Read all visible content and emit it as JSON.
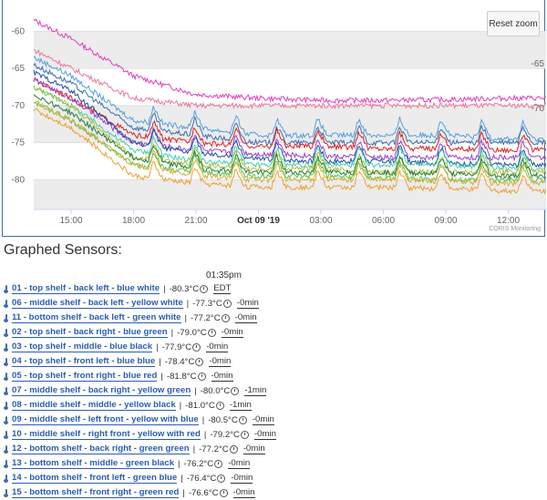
{
  "chart": {
    "reset_label": "Reset zoom",
    "credits": "CORIS Monitoring",
    "y_ticks": [
      "-60",
      "-65",
      "-70",
      "-75",
      "-80"
    ],
    "y_right_labels": [
      "-65",
      "-70"
    ],
    "x_ticks": [
      "15:00",
      "18:00",
      "21:00",
      "Oct 09 '19",
      "03:00",
      "06:00",
      "09:00",
      "12:00"
    ]
  },
  "chart_data": {
    "type": "line",
    "x": [
      "15:00",
      "18:00",
      "21:00",
      "Oct 09 '19",
      "03:00",
      "06:00",
      "09:00",
      "12:00"
    ],
    "ylim": [
      -84,
      -57
    ],
    "grid": true,
    "plot_bands": [
      [
        -60,
        -65
      ],
      [
        -70,
        -75
      ],
      [
        -80,
        -84
      ]
    ],
    "series": [
      {
        "color": "#e040c0",
        "values": [
          -61,
          -66,
          -68.5,
          -69,
          -69.3,
          -69.3,
          -69.2,
          -69.0
        ]
      },
      {
        "color": "#e87a9a",
        "values": [
          -65,
          -69,
          -70,
          -70,
          -70,
          -70,
          -70,
          -70
        ]
      },
      {
        "color": "#56a0e0",
        "values": [
          -66,
          -72,
          -73,
          -74,
          -74,
          -74,
          -74,
          -74.5
        ]
      },
      {
        "color": "#3f6db0",
        "values": [
          -67,
          -73,
          -74,
          -75,
          -75,
          -75,
          -75,
          -75
        ]
      },
      {
        "color": "#e02020",
        "values": [
          -69,
          -74,
          -75,
          -75.5,
          -75.5,
          -75.8,
          -75.8,
          -76
        ]
      },
      {
        "color": "#9a40d0",
        "values": [
          -69,
          -75,
          -76,
          -76.5,
          -76.8,
          -77,
          -77,
          -77
        ]
      },
      {
        "color": "#2050a0",
        "values": [
          -68,
          -75,
          -76.5,
          -77.2,
          -77.5,
          -77.5,
          -77.8,
          -78
        ]
      },
      {
        "color": "#40d0b0",
        "values": [
          -70,
          -76,
          -77.5,
          -78,
          -78,
          -78,
          -78,
          -78.5
        ]
      },
      {
        "color": "#b0c030",
        "values": [
          -70,
          -77,
          -78,
          -78.5,
          -78.5,
          -79,
          -79,
          -79
        ]
      },
      {
        "color": "#208040",
        "values": [
          -71,
          -77,
          -78.5,
          -79,
          -79,
          -79,
          -79.2,
          -79.5
        ]
      },
      {
        "color": "#60c040",
        "values": [
          -72,
          -78,
          -79,
          -79.5,
          -79.5,
          -79.8,
          -80,
          -80
        ]
      },
      {
        "color": "#d0b040",
        "values": [
          -72,
          -78,
          -79.5,
          -80,
          -80,
          -80,
          -80.2,
          -80.5
        ]
      },
      {
        "color": "#f0a030",
        "values": [
          -73,
          -79.5,
          -80.5,
          -81,
          -81,
          -81,
          -81.2,
          -81.5
        ]
      }
    ]
  },
  "section_title": "Graphed Sensors:",
  "time_header": "01:35pm",
  "sensors": [
    {
      "name": "01 - top shelf - back left - blue white",
      "value": "-80.3°C",
      "age": "EDT"
    },
    {
      "name": "06 - middle shelf - back left - yellow white",
      "value": "-77.3°C",
      "age": "-0min"
    },
    {
      "name": "11 - bottom shelf - back left - green white",
      "value": "-77.2°C",
      "age": "-0min"
    },
    {
      "name": "02 - top shelf - back right - blue green",
      "value": "-79.0°C",
      "age": "-0min"
    },
    {
      "name": "03 - top shelf - middle - blue black",
      "value": "-77.9°C",
      "age": "-0min"
    },
    {
      "name": "04 - top shelf - front left - blue blue",
      "value": "-78.4°C",
      "age": "-0min"
    },
    {
      "name": "05 - top shelf - front right - blue red",
      "value": "-81.8°C",
      "age": "-0min"
    },
    {
      "name": "07 - middle shelf - back right - yellow green",
      "value": "-80.0°C",
      "age": "-1min"
    },
    {
      "name": "08 - middle shelf - middle - yellow black",
      "value": "-81.0°C",
      "age": "-1min"
    },
    {
      "name": "09 - middle shelf - left front - yellow with blue",
      "value": "-80.5°C",
      "age": "-0min"
    },
    {
      "name": "10 - middle shelf - right front - yellow with red",
      "value": "-79.2°C",
      "age": "-0min"
    },
    {
      "name": "12 - bottom shelf - back right - green green",
      "value": "-77.2°C",
      "age": "-0min"
    },
    {
      "name": "13 - bottom shelf - middle - green black",
      "value": "-76.2°C",
      "age": "-0min"
    },
    {
      "name": "14 - bottom shelf - front left - green blue",
      "value": "-76.4°C",
      "age": "-0min"
    },
    {
      "name": "15 - bottom shelf - front right - green red",
      "value": "-76.6°C",
      "age": "-0min"
    }
  ]
}
